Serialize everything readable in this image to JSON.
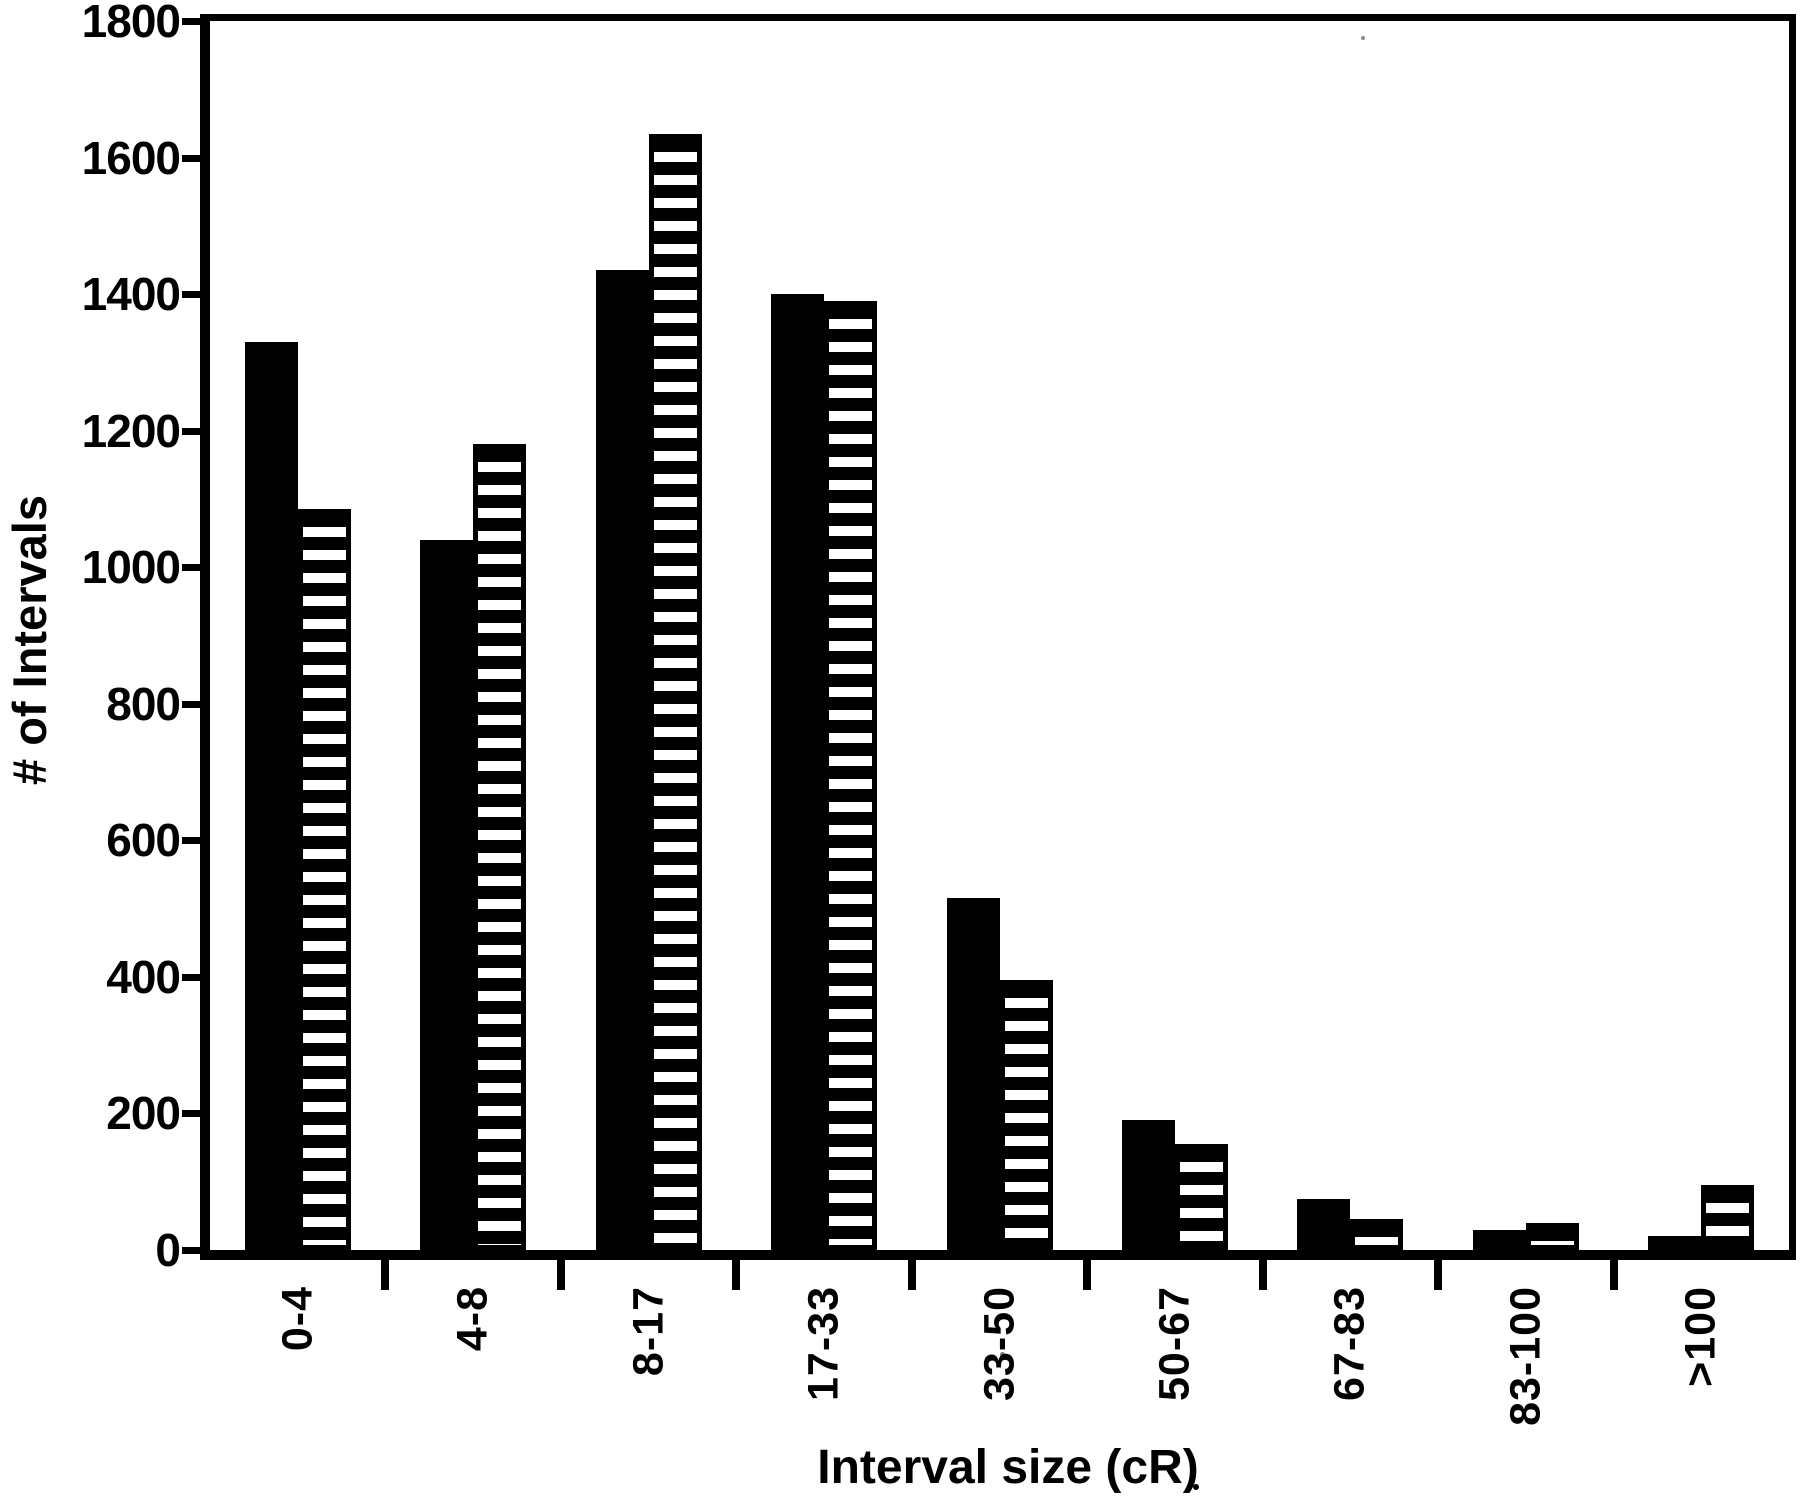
{
  "chart_data": {
    "type": "bar",
    "title": "",
    "xlabel": "Interval size (cR)",
    "ylabel": "# of Intervals",
    "categories": [
      "0-4",
      "4-8",
      "8-17",
      "17-33",
      "33-50",
      "50-67",
      "67-83",
      "83-100",
      ">100"
    ],
    "series": [
      {
        "name": "solid",
        "pattern": "solid-black-fill",
        "values": [
          1330,
          1040,
          1435,
          1400,
          515,
          190,
          75,
          30,
          20
        ]
      },
      {
        "name": "striped",
        "pattern": "horizontal-white-stripes-on-black",
        "values": [
          1085,
          1180,
          1635,
          1390,
          395,
          155,
          45,
          40,
          95
        ]
      }
    ],
    "ylim": [
      0,
      1800
    ],
    "y_tick_step": 200,
    "y_ticks": [
      0,
      200,
      400,
      600,
      800,
      1000,
      1200,
      1400,
      1600,
      1800
    ],
    "y_tick_labels": [
      "0",
      "200",
      "400",
      "600",
      "800",
      "1000",
      "1200",
      "1400",
      "1600",
      "1800"
    ],
    "x_tick_label_rotation": -90,
    "grid": false,
    "legend": "none",
    "frame": "full-box"
  },
  "colors": {
    "ink": "#000000",
    "paper": "#ffffff"
  }
}
